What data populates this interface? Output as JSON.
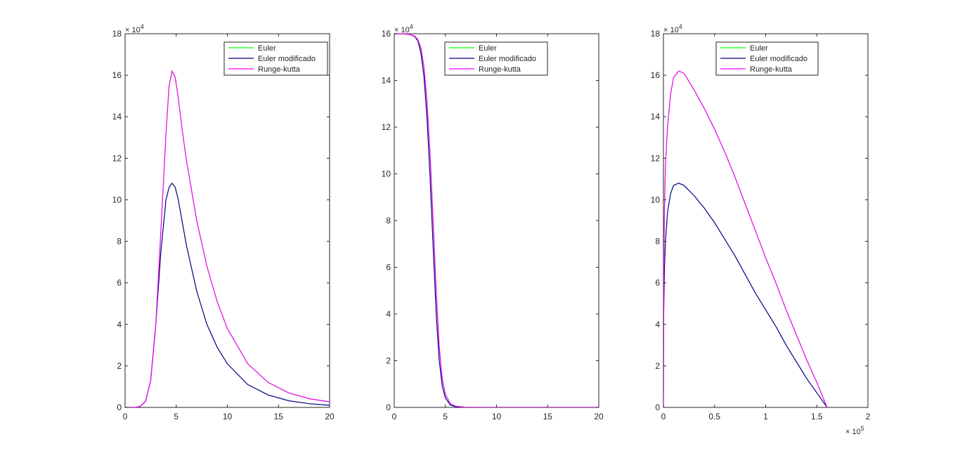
{
  "chart_data": [
    {
      "type": "line",
      "x_exponent": "",
      "y_exponent": "4",
      "xlim": [
        0,
        20
      ],
      "ylim": [
        0,
        18
      ],
      "xticks": [
        "0",
        "5",
        "10",
        "15",
        "20"
      ],
      "yticks": [
        "0",
        "2",
        "4",
        "6",
        "8",
        "10",
        "12",
        "14",
        "16",
        "18"
      ],
      "x_tick_values": [
        0,
        5,
        10,
        15,
        20
      ],
      "y_tick_values": [
        0,
        2,
        4,
        6,
        8,
        10,
        12,
        14,
        16,
        18
      ],
      "legend_placement": "top-right",
      "series": [
        {
          "name": "Euler",
          "color": "#00ff00",
          "x": [
            0,
            1,
            1.5,
            2,
            2.5,
            3,
            3.5,
            4,
            4.3,
            4.6,
            4.9,
            5.2,
            5.6,
            6,
            7,
            8,
            9,
            10,
            12,
            14,
            16,
            18,
            20
          ],
          "y": [
            0,
            0.003,
            0.05,
            0.3,
            1.3,
            4.0,
            8.5,
            13.2,
            15.5,
            16.2,
            15.9,
            14.9,
            13.3,
            11.9,
            9.0,
            6.8,
            5.1,
            3.8,
            2.1,
            1.2,
            0.7,
            0.42,
            0.27
          ]
        },
        {
          "name": "Euler modificado",
          "color": "#000080",
          "x": [
            0,
            1,
            1.5,
            2,
            2.5,
            3,
            3.5,
            4,
            4.3,
            4.6,
            4.9,
            5.2,
            5.6,
            6,
            7,
            8,
            9,
            10,
            12,
            14,
            16,
            18,
            20
          ],
          "y": [
            0,
            0.003,
            0.05,
            0.3,
            1.3,
            4.0,
            7.5,
            10.0,
            10.6,
            10.8,
            10.6,
            10.0,
            8.9,
            7.8,
            5.6,
            4.0,
            2.9,
            2.1,
            1.1,
            0.6,
            0.32,
            0.18,
            0.1
          ]
        },
        {
          "name": "Runge-kutta",
          "color": "#ff00ff",
          "x": [
            0,
            1,
            1.5,
            2,
            2.5,
            3,
            3.5,
            4,
            4.3,
            4.6,
            4.9,
            5.2,
            5.6,
            6,
            7,
            8,
            9,
            10,
            12,
            14,
            16,
            18,
            20
          ],
          "y": [
            0,
            0.003,
            0.05,
            0.3,
            1.3,
            4.0,
            8.5,
            13.2,
            15.5,
            16.2,
            15.9,
            14.9,
            13.3,
            11.9,
            9.0,
            6.8,
            5.1,
            3.8,
            2.1,
            1.2,
            0.7,
            0.42,
            0.27
          ]
        }
      ]
    },
    {
      "type": "line",
      "x_exponent": "",
      "y_exponent": "4",
      "xlim": [
        0,
        20
      ],
      "ylim": [
        0,
        16
      ],
      "xticks": [
        "0",
        "5",
        "10",
        "15",
        "20"
      ],
      "yticks": [
        "0",
        "2",
        "4",
        "6",
        "8",
        "10",
        "12",
        "14",
        "16"
      ],
      "x_tick_values": [
        0,
        5,
        10,
        15,
        20
      ],
      "y_tick_values": [
        0,
        2,
        4,
        6,
        8,
        10,
        12,
        14,
        16
      ],
      "legend_placement": "top-right",
      "series": [
        {
          "name": "Euler",
          "color": "#00ff00",
          "x": [
            0,
            1,
            1.5,
            2,
            2.3,
            2.6,
            2.9,
            3.2,
            3.5,
            3.8,
            4.1,
            4.4,
            4.7,
            5.0,
            5.5,
            6,
            7,
            8,
            10,
            15,
            20
          ],
          "y": [
            16,
            15.99,
            15.97,
            15.9,
            15.75,
            15.4,
            14.6,
            13.1,
            10.9,
            8.0,
            5.0,
            2.6,
            1.2,
            0.55,
            0.15,
            0.05,
            0.01,
            0,
            0,
            0,
            0
          ]
        },
        {
          "name": "Euler modificado",
          "color": "#000080",
          "x": [
            0,
            1,
            1.5,
            2,
            2.3,
            2.6,
            2.9,
            3.2,
            3.5,
            3.8,
            4.1,
            4.4,
            4.7,
            5.0,
            5.5,
            6,
            7,
            8,
            10,
            15,
            20
          ],
          "y": [
            16,
            15.99,
            15.97,
            15.88,
            15.7,
            15.2,
            14.2,
            12.4,
            9.9,
            6.9,
            4.0,
            2.0,
            0.9,
            0.4,
            0.1,
            0.03,
            0.005,
            0,
            0,
            0,
            0
          ]
        },
        {
          "name": "Runge-kutta",
          "color": "#ff00ff",
          "x": [
            0,
            1,
            1.5,
            2,
            2.3,
            2.6,
            2.9,
            3.2,
            3.5,
            3.8,
            4.1,
            4.4,
            4.7,
            5.0,
            5.5,
            6,
            7,
            8,
            10,
            15,
            20
          ],
          "y": [
            16,
            15.99,
            15.97,
            15.9,
            15.75,
            15.4,
            14.6,
            13.1,
            10.9,
            8.0,
            5.0,
            2.6,
            1.2,
            0.55,
            0.15,
            0.05,
            0.01,
            0,
            0,
            0,
            0
          ]
        }
      ]
    },
    {
      "type": "line",
      "x_exponent": "5",
      "y_exponent": "4",
      "xlim": [
        0,
        2
      ],
      "ylim": [
        0,
        18
      ],
      "xticks": [
        "0",
        "0.5",
        "1",
        "1.5",
        "2"
      ],
      "yticks": [
        "0",
        "2",
        "4",
        "6",
        "8",
        "10",
        "12",
        "14",
        "16",
        "18"
      ],
      "x_tick_values": [
        0,
        0.5,
        1,
        1.5,
        2
      ],
      "y_tick_values": [
        0,
        2,
        4,
        6,
        8,
        10,
        12,
        14,
        16,
        18
      ],
      "legend_placement": "top-right",
      "series": [
        {
          "name": "Euler",
          "color": "#00ff00",
          "x": [
            0,
            0.003,
            0.01,
            0.02,
            0.04,
            0.07,
            0.1,
            0.15,
            0.2,
            0.3,
            0.4,
            0.5,
            0.6,
            0.7,
            0.8,
            0.9,
            1.0,
            1.1,
            1.2,
            1.3,
            1.4,
            1.5,
            1.6
          ],
          "y": [
            0,
            6.5,
            9.6,
            11.7,
            13.5,
            15.1,
            15.9,
            16.2,
            16.1,
            15.3,
            14.4,
            13.4,
            12.3,
            11.1,
            9.8,
            8.5,
            7.2,
            6.0,
            4.7,
            3.5,
            2.3,
            1.2,
            0
          ]
        },
        {
          "name": "Euler modificado",
          "color": "#000080",
          "x": [
            0,
            0.003,
            0.01,
            0.02,
            0.04,
            0.07,
            0.1,
            0.15,
            0.2,
            0.3,
            0.4,
            0.5,
            0.6,
            0.7,
            0.8,
            0.9,
            1.0,
            1.1,
            1.2,
            1.3,
            1.4,
            1.5,
            1.6
          ],
          "y": [
            0,
            4.5,
            6.8,
            8.0,
            9.4,
            10.3,
            10.7,
            10.8,
            10.7,
            10.2,
            9.6,
            8.9,
            8.1,
            7.3,
            6.4,
            5.5,
            4.7,
            3.9,
            3.0,
            2.2,
            1.4,
            0.7,
            0
          ]
        },
        {
          "name": "Runge-kutta",
          "color": "#ff00ff",
          "x": [
            0,
            0.003,
            0.01,
            0.02,
            0.04,
            0.07,
            0.1,
            0.15,
            0.2,
            0.3,
            0.4,
            0.5,
            0.6,
            0.7,
            0.8,
            0.9,
            1.0,
            1.1,
            1.2,
            1.3,
            1.4,
            1.5,
            1.6
          ],
          "y": [
            0,
            6.5,
            9.6,
            11.7,
            13.5,
            15.1,
            15.9,
            16.2,
            16.1,
            15.3,
            14.4,
            13.4,
            12.3,
            11.1,
            9.8,
            8.5,
            7.2,
            6.0,
            4.7,
            3.5,
            2.3,
            1.2,
            0
          ]
        }
      ]
    }
  ]
}
